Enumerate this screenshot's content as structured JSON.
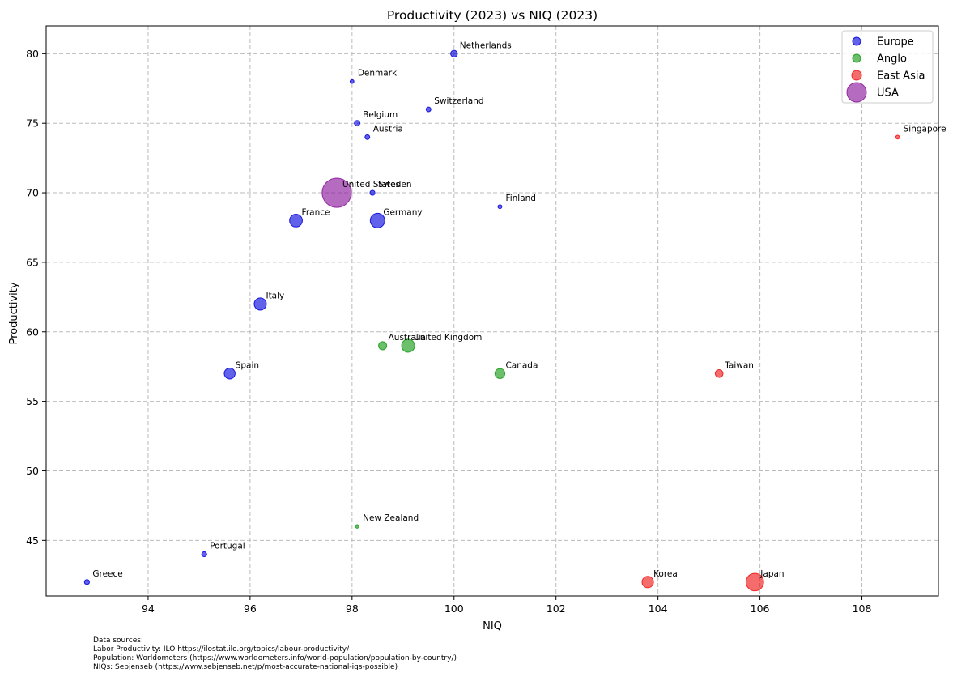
{
  "chart_data": {
    "type": "scatter",
    "title": "Productivity (2023) vs NIQ (2023)",
    "xlabel": "NIQ",
    "ylabel": "Productivity",
    "xlim": [
      92,
      109.5
    ],
    "ylim": [
      41,
      82
    ],
    "xticks": [
      94,
      96,
      98,
      100,
      102,
      104,
      106,
      108
    ],
    "yticks": [
      45,
      50,
      55,
      60,
      65,
      70,
      75,
      80
    ],
    "grid": true,
    "legend_position": "top-right",
    "series": [
      {
        "name": "Europe",
        "color": "#0000dd",
        "points": [
          {
            "label": "Netherlands",
            "x": 100.0,
            "y": 80,
            "population_m": 18
          },
          {
            "label": "Denmark",
            "x": 98.0,
            "y": 78,
            "population_m": 6
          },
          {
            "label": "Switzerland",
            "x": 99.5,
            "y": 76,
            "population_m": 9
          },
          {
            "label": "Belgium",
            "x": 98.1,
            "y": 75,
            "population_m": 12
          },
          {
            "label": "Austria",
            "x": 98.3,
            "y": 74,
            "population_m": 9
          },
          {
            "label": "Sweden",
            "x": 98.4,
            "y": 70,
            "population_m": 10
          },
          {
            "label": "Finland",
            "x": 100.9,
            "y": 69,
            "population_m": 6
          },
          {
            "label": "France",
            "x": 96.9,
            "y": 68,
            "population_m": 65
          },
          {
            "label": "Germany",
            "x": 98.5,
            "y": 68,
            "population_m": 84
          },
          {
            "label": "Italy",
            "x": 96.2,
            "y": 62,
            "population_m": 59
          },
          {
            "label": "Spain",
            "x": 95.6,
            "y": 57,
            "population_m": 47
          },
          {
            "label": "Portugal",
            "x": 95.1,
            "y": 44,
            "population_m": 10
          },
          {
            "label": "Greece",
            "x": 92.8,
            "y": 42,
            "population_m": 10
          }
        ]
      },
      {
        "name": "Anglo",
        "color": "#119911",
        "points": [
          {
            "label": "Australia",
            "x": 98.6,
            "y": 59,
            "population_m": 26
          },
          {
            "label": "United Kingdom",
            "x": 99.1,
            "y": 59,
            "population_m": 68
          },
          {
            "label": "Canada",
            "x": 100.9,
            "y": 57,
            "population_m": 39
          },
          {
            "label": "New Zealand",
            "x": 98.1,
            "y": 46,
            "population_m": 5
          }
        ]
      },
      {
        "name": "East Asia",
        "color": "#ee1111",
        "points": [
          {
            "label": "Singapore",
            "x": 108.7,
            "y": 74,
            "population_m": 6
          },
          {
            "label": "Taiwan",
            "x": 105.2,
            "y": 57,
            "population_m": 24
          },
          {
            "label": "Korea",
            "x": 103.8,
            "y": 42,
            "population_m": 52
          },
          {
            "label": "Japan",
            "x": 105.9,
            "y": 42,
            "population_m": 123
          }
        ]
      },
      {
        "name": "USA",
        "color": "#881199",
        "points": [
          {
            "label": "United States",
            "x": 97.7,
            "y": 70,
            "population_m": 340
          }
        ]
      }
    ]
  },
  "sources": {
    "heading": "Data sources:",
    "lines": [
      "Labor Productivity: ILO https://ilostat.ilo.org/topics/labour-productivity/",
      "Population: Worldometers (https://www.worldometers.info/world-population/population-by-country/)",
      "NIQs: Sebjenseb (https://www.sebjenseb.net/p/most-accurate-national-iqs-possible)"
    ]
  }
}
